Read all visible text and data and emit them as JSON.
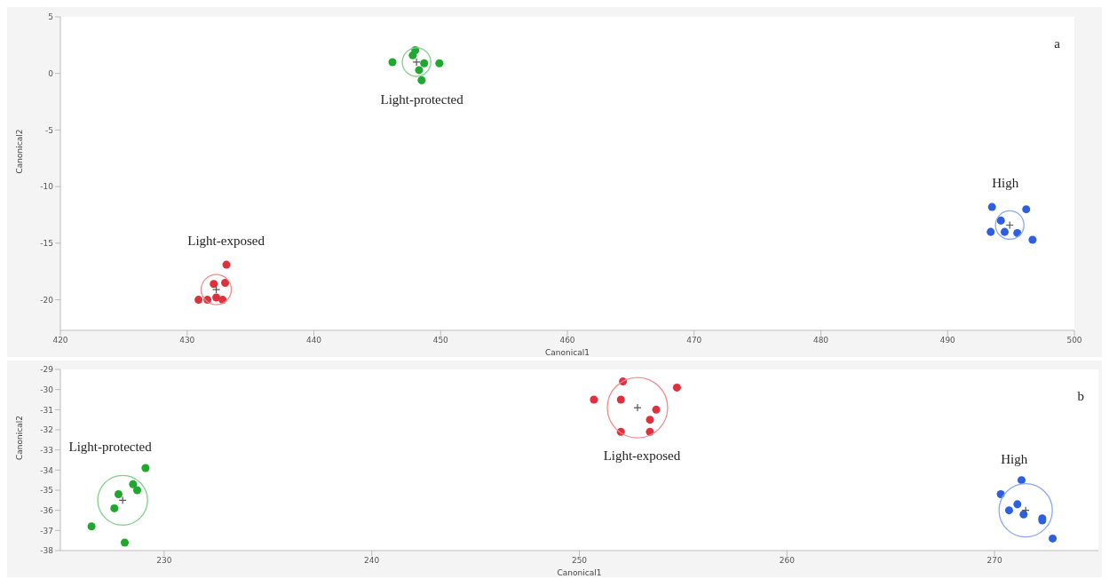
{
  "chart_data": [
    {
      "type": "scatter",
      "xlabel": "Canonical1",
      "ylabel": "Canonical2",
      "xlim": [
        420,
        500
      ],
      "ylim": [
        -22.7,
        5
      ],
      "xticks": [
        420,
        430,
        440,
        450,
        460,
        470,
        480,
        490,
        500
      ],
      "yticks": [
        5,
        0,
        -5,
        -10,
        -15,
        -20
      ],
      "marker": "circle",
      "annotations": [
        "a",
        "Light-protected",
        "Light-exposed",
        "High"
      ],
      "series": [
        {
          "color": "#1fa82e",
          "x": [
            446.2,
            448.0,
            447.8,
            448.7,
            448.3,
            449.9,
            448.5
          ],
          "values": [
            1.0,
            2.06,
            1.6,
            0.9,
            0.3,
            0.9,
            -0.6
          ]
        },
        {
          "color": "#e0303c",
          "x": [
            433.1,
            432.1,
            433.0,
            430.9,
            431.6,
            432.3,
            432.8
          ],
          "values": [
            -16.9,
            -18.6,
            -18.5,
            -20.0,
            -20.0,
            -19.8,
            -20.0
          ]
        },
        {
          "color": "#2e5fe0",
          "x": [
            493.5,
            496.2,
            494.2,
            493.4,
            494.5,
            495.5,
            496.7
          ],
          "values": [
            -11.8,
            -12.0,
            -13.0,
            -14.0,
            -14.0,
            -14.1,
            -14.7
          ]
        },
        {
          "type": "bubble",
          "color": "#7fd08a",
          "x": [
            448.1
          ],
          "values": [
            1.0
          ],
          "sizes": [
            0.89
          ]
        },
        {
          "type": "bubble",
          "color": "#f08c8c",
          "x": [
            432.3
          ],
          "values": [
            -19.1
          ],
          "sizes": [
            1
          ]
        },
        {
          "type": "bubble",
          "color": "#8aa8f0",
          "x": [
            494.9
          ],
          "values": [
            -13.4
          ],
          "sizes": [
            0.89
          ]
        }
      ]
    },
    {
      "type": "scatter",
      "xlabel": "Canonical1",
      "ylabel": "Canonical2",
      "xlim": [
        225,
        275
      ],
      "ylim": [
        -38,
        -29
      ],
      "xticks": [
        230,
        240,
        250,
        260,
        270
      ],
      "yticks": [
        -29,
        -30,
        -31,
        -32,
        -33,
        -34,
        -35,
        -36,
        -37,
        -38
      ],
      "marker": "circle",
      "annotations": [
        "b",
        "Light-protected",
        "Light-exposed",
        "High"
      ],
      "series": [
        {
          "color": "#1fa82e",
          "x": [
            229.1,
            228.5,
            228.7,
            227.8,
            227.6,
            226.5,
            228.1
          ],
          "values": [
            -33.9,
            -34.7,
            -35.0,
            -35.2,
            -35.9,
            -36.8,
            -37.6
          ]
        },
        {
          "color": "#e0303c",
          "x": [
            252.1,
            254.7,
            250.7,
            252.0,
            253.7,
            253.4,
            252.0,
            253.4
          ],
          "values": [
            -29.6,
            -29.9,
            -30.5,
            -30.5,
            -31.0,
            -31.5,
            -32.1,
            -32.1
          ]
        },
        {
          "color": "#2e5fe0",
          "x": [
            271.3,
            270.3,
            271.1,
            270.7,
            271.4,
            272.3,
            272.3,
            272.8
          ],
          "values": [
            -34.5,
            -35.2,
            -35.7,
            -36.0,
            -36.2,
            -36.4,
            -36.5,
            -37.4
          ]
        },
        {
          "type": "bubble",
          "color": "#7fd08a",
          "x": [
            228.0
          ],
          "values": [
            -35.5
          ],
          "sizes": [
            0.68
          ]
        },
        {
          "type": "bubble",
          "color": "#f08c8c",
          "x": [
            252.8
          ],
          "values": [
            -30.9
          ],
          "sizes": [
            1
          ]
        },
        {
          "type": "bubble",
          "color": "#8aa8f0",
          "x": [
            271.5
          ],
          "values": [
            -36.0
          ],
          "sizes": [
            0.78
          ]
        }
      ]
    }
  ]
}
